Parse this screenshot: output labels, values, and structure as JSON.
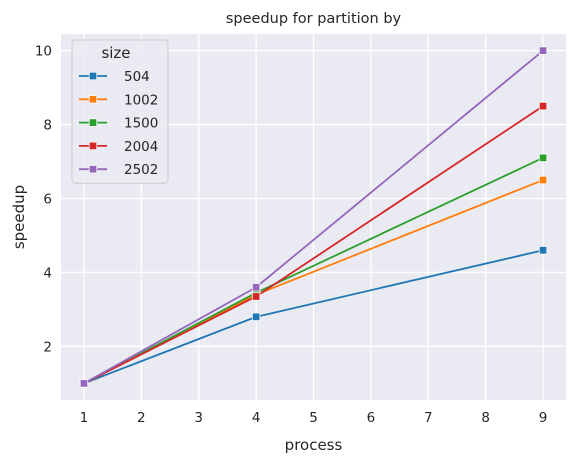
{
  "chart_data": {
    "type": "line",
    "title": "speedup for partition by",
    "xlabel": "process",
    "ylabel": "speedup",
    "x": [
      1,
      4,
      9
    ],
    "xlim": [
      0.6,
      9.4
    ],
    "ylim": [
      0.55,
      10.45
    ],
    "xticks": [
      "1",
      "2",
      "3",
      "4",
      "5",
      "6",
      "7",
      "8",
      "9"
    ],
    "yticks": [
      "2",
      "4",
      "6",
      "8",
      "10"
    ],
    "grid": true,
    "legend": {
      "title": "size",
      "position": "top-left"
    },
    "series": [
      {
        "name": "504",
        "color": "#1f77b4",
        "values": [
          1.0,
          2.8,
          4.6
        ]
      },
      {
        "name": "1002",
        "color": "#ff7f0e",
        "values": [
          1.0,
          3.4,
          6.5
        ]
      },
      {
        "name": "1500",
        "color": "#2ca02c",
        "values": [
          1.0,
          3.45,
          7.1
        ]
      },
      {
        "name": "2004",
        "color": "#d62728",
        "values": [
          1.0,
          3.35,
          8.5
        ]
      },
      {
        "name": "2502",
        "color": "#9467bd",
        "values": [
          1.0,
          3.6,
          10.0
        ]
      }
    ]
  }
}
